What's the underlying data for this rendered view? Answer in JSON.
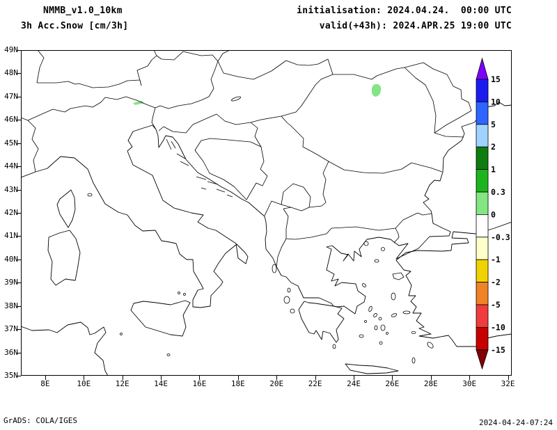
{
  "header": {
    "model": "NMMB_v1.0_10km",
    "product": "3h Acc.Snow [cm/3h]",
    "init_line": "initialisation: 2024.04.24.  00:00 UTC",
    "valid_line": "valid(+43h): 2024.APR.25 19:00 UTC"
  },
  "map": {
    "lat_labels": [
      "49N",
      "48N",
      "47N",
      "46N",
      "45N",
      "44N",
      "43N",
      "42N",
      "41N",
      "40N",
      "39N",
      "38N",
      "37N",
      "36N",
      "35N"
    ],
    "lon_labels": [
      "8E",
      "10E",
      "12E",
      "14E",
      "16E",
      "18E",
      "20E",
      "22E",
      "24E",
      "26E",
      "28E",
      "30E",
      "32E"
    ],
    "snow_color": "#82e682",
    "outline_color": "#000000"
  },
  "colorbar": {
    "labels": [
      "15",
      "10",
      "5",
      "2",
      "1",
      "0.3",
      "0",
      "-0.3",
      "-1",
      "-2",
      "-5",
      "-10",
      "-15"
    ],
    "top_arrow_color": "#7f00ff",
    "bottom_arrow_color": "#820000",
    "segment_colors": [
      "#1c1cf0",
      "#2e64ff",
      "#a0d2ff",
      "#0e7c0e",
      "#1eb41e",
      "#82e682",
      "#ffffff",
      "#ffffc8",
      "#f0d200",
      "#f08228",
      "#f03c3c",
      "#c80000"
    ]
  },
  "footer": {
    "left": "GrADS: COLA/IGES",
    "right": "2024-04-24-07:24"
  }
}
